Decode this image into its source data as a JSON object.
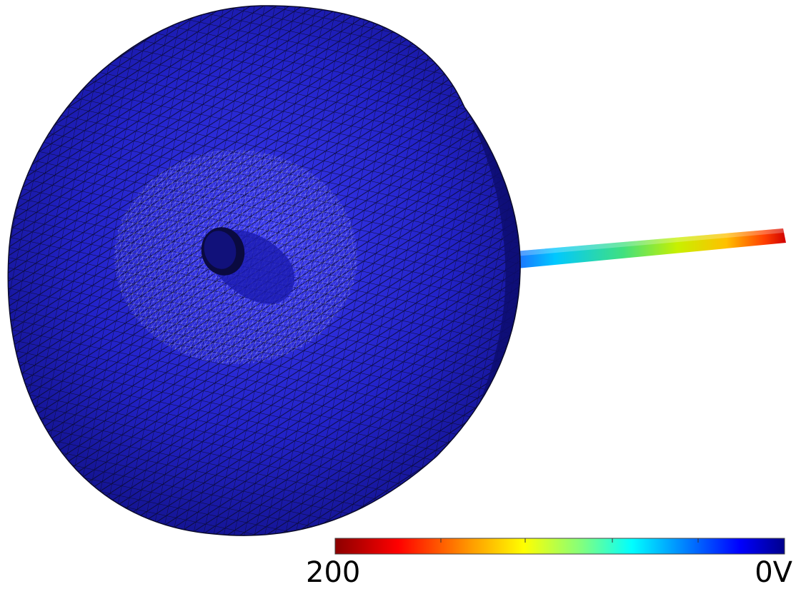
{
  "figure": {
    "description_kind": "finite-element mesh with electric potential coloring",
    "colors": {
      "mesh_face": "#1818c8",
      "mesh_line": "#0a0a2a",
      "background": "#ffffff"
    }
  },
  "colorbar": {
    "min_label": "200",
    "max_label": "0V",
    "stops": [
      "#8b0000",
      "#ff0000",
      "#ffa500",
      "#ffff00",
      "#7fff7f",
      "#00ffff",
      "#0080ff",
      "#0000ff",
      "#00008b"
    ]
  }
}
